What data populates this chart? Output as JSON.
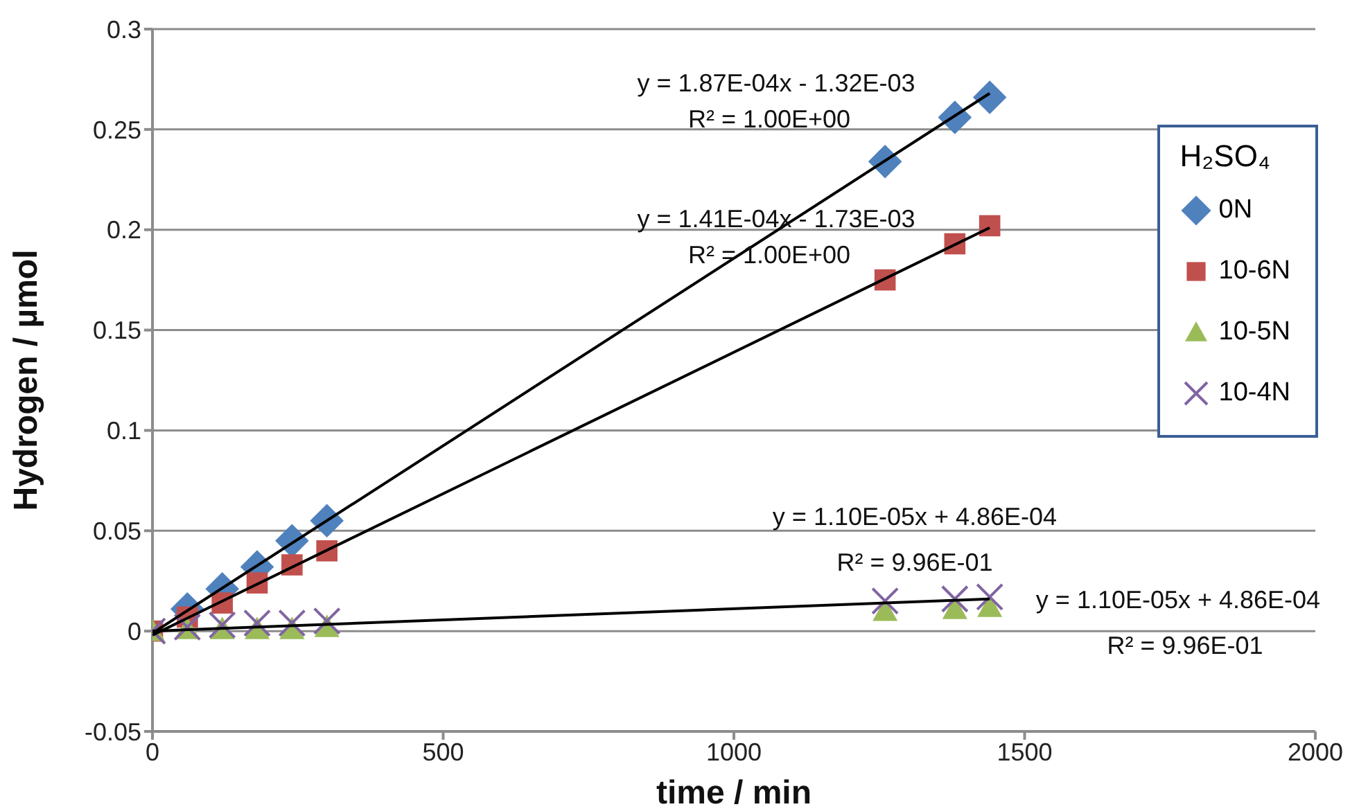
{
  "chart_data": {
    "type": "scatter",
    "xlabel": "time / min",
    "ylabel": "Hydrogen / µmol",
    "legend_title": "H₂SO₄",
    "legend": "right",
    "grid": "y",
    "xlim": [
      0,
      2000
    ],
    "xticks": [
      0,
      500,
      1000,
      1500,
      2000
    ],
    "ylim": [
      -0.05,
      0.3
    ],
    "yticks": [
      -0.05,
      0,
      0.05,
      0.1,
      0.15,
      0.2,
      0.25,
      0.3
    ],
    "x": [
      0,
      60,
      120,
      180,
      240,
      300,
      1260,
      1380,
      1440
    ],
    "series": [
      {
        "name": "0N",
        "color": "#4f81bd",
        "marker": "diamond",
        "values": [
          null,
          0.011,
          0.021,
          0.032,
          0.045,
          0.055,
          0.234,
          0.256,
          0.266
        ]
      },
      {
        "name": "10-6N",
        "color": "#c0504d",
        "marker": "square",
        "values": [
          0,
          0.007,
          0.014,
          0.024,
          0.033,
          0.04,
          0.175,
          0.193,
          0.202
        ]
      },
      {
        "name": "10-5N",
        "color": "#9bbb59",
        "marker": "triangle",
        "values": [
          0,
          0.001,
          0.001,
          0.001,
          0.001,
          0.002,
          0.01,
          0.011,
          0.012
        ]
      },
      {
        "name": "10-4N",
        "color": "#8064a2",
        "marker": "cross",
        "values": [
          0,
          0.002,
          0.003,
          0.004,
          0.004,
          0.005,
          0.015,
          0.016,
          0.017
        ]
      },
      {
        "type": "line",
        "color": "#000000",
        "marker": "none",
        "values": [
          -0.001,
          null,
          null,
          null,
          null,
          null,
          null,
          null,
          0.268
        ]
      },
      {
        "type": "line",
        "color": "#000000",
        "marker": "none",
        "values": [
          -0.002,
          null,
          null,
          null,
          null,
          null,
          null,
          null,
          0.201
        ]
      },
      {
        "type": "line",
        "color": "#000000",
        "marker": "none",
        "values": [
          0,
          null,
          null,
          null,
          null,
          null,
          null,
          null,
          0.016
        ]
      }
    ],
    "annotations": [
      "y = 1.87E-04x - 1.32E-03",
      "R² = 1.00E+00",
      "y = 1.41E-04x - 1.73E-03",
      "R² = 1.00E+00",
      "y = 1.10E-05x + 4.86E-04",
      "R² = 9.96E-01",
      "y = 1.10E-05x + 4.86E-04",
      "R² = 9.96E-01"
    ]
  }
}
